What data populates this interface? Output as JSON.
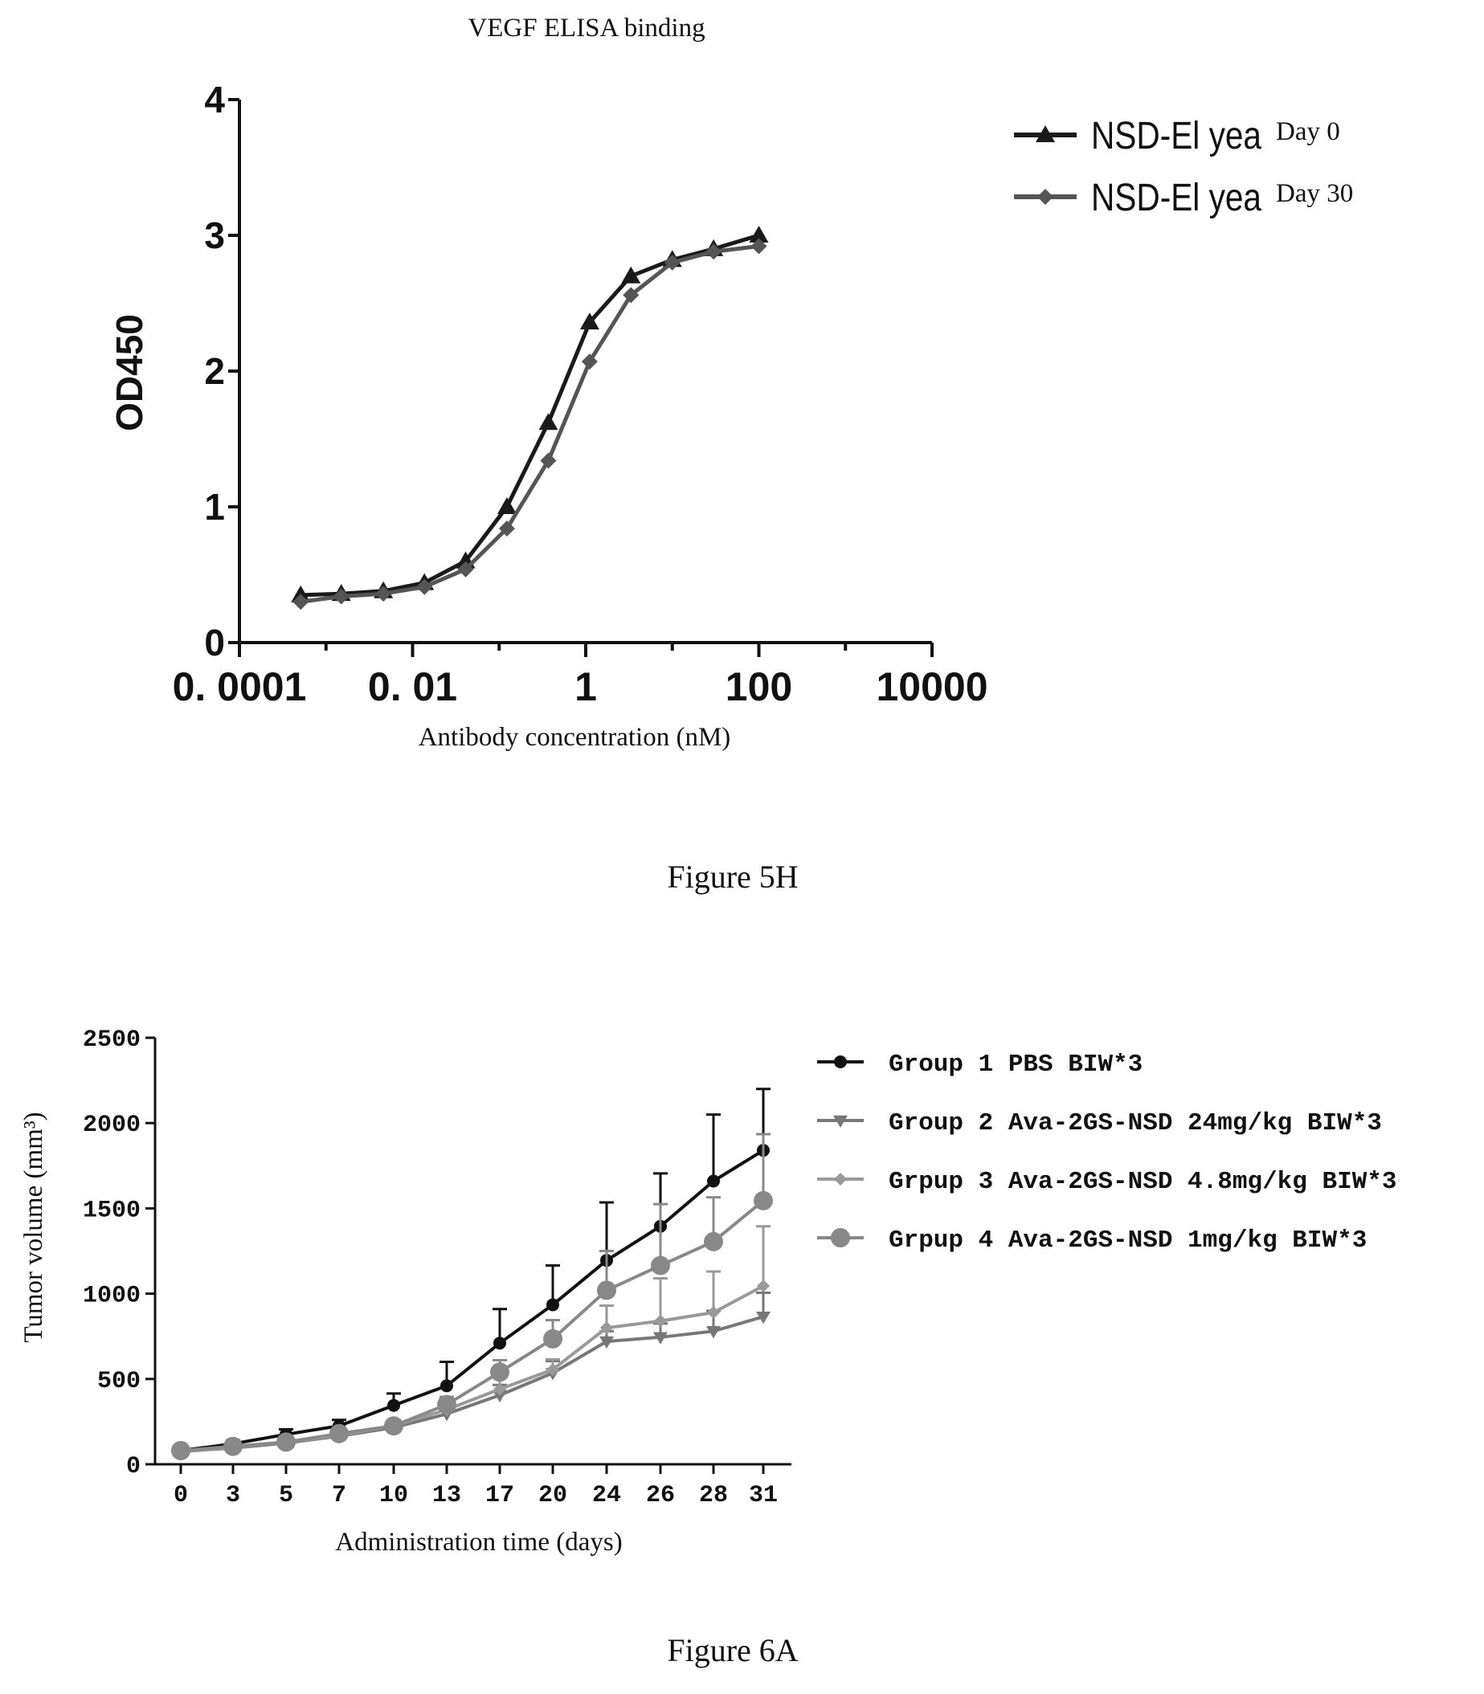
{
  "chart_data": [
    {
      "type": "line",
      "title": "VEGF ELISA binding",
      "xlabel": "Antibody concentration (nM)",
      "ylabel": "OD450",
      "xscale": "log",
      "xlim": [
        0.0001,
        10000
      ],
      "ylim": [
        0,
        4
      ],
      "xticks": [
        "0. 0001",
        "0. 01",
        "1",
        "100",
        "10000"
      ],
      "yticks": [
        "0",
        "1",
        "2",
        "3",
        "4"
      ],
      "x": [
        0.00051,
        0.0015,
        0.0046,
        0.0137,
        0.041,
        0.123,
        0.37,
        1.11,
        3.33,
        10,
        30,
        100
      ],
      "series": [
        {
          "name": "NSD-El yea",
          "suffix": "Day 0",
          "marker": "triangle",
          "color": "#1a1a1a",
          "values": [
            0.35,
            0.36,
            0.38,
            0.44,
            0.6,
            1.0,
            1.62,
            2.36,
            2.7,
            2.82,
            2.9,
            3.0
          ]
        },
        {
          "name": "NSD-El yea",
          "suffix": "Day 30",
          "marker": "diamond",
          "color": "#555555",
          "values": [
            0.3,
            0.34,
            0.36,
            0.41,
            0.54,
            0.84,
            1.34,
            2.07,
            2.56,
            2.8,
            2.88,
            2.92
          ]
        }
      ],
      "legend_position": "top-right",
      "grid": false,
      "caption": "Figure 5H"
    },
    {
      "type": "line",
      "title": "",
      "xlabel": "Administration time (days)",
      "ylabel": "Tumor volume (mm³)",
      "ylim": [
        0,
        2500
      ],
      "yticks": [
        "0",
        "500",
        "1000",
        "1500",
        "2000",
        "2500"
      ],
      "categories": [
        "0",
        "3",
        "5",
        "7",
        "10",
        "13",
        "17",
        "20",
        "24",
        "26",
        "28",
        "31"
      ],
      "series": [
        {
          "name": "Group 1 PBS BIW*3",
          "marker": "circle-small",
          "color": "#111111",
          "values": [
            80,
            120,
            175,
            225,
            345,
            460,
            710,
            935,
            1195,
            1395,
            1660,
            1840
          ],
          "error": [
            0,
            20,
            30,
            35,
            70,
            140,
            200,
            230,
            340,
            310,
            390,
            360
          ]
        },
        {
          "name": "Group 2 Ava-2GS-NSD 24mg/kg BIW*3",
          "marker": "triangle-down",
          "color": "#777777",
          "values": [
            75,
            95,
            125,
            165,
            215,
            295,
            405,
            535,
            720,
            745,
            780,
            865
          ],
          "error": [
            0,
            15,
            20,
            25,
            30,
            40,
            60,
            70,
            60,
            80,
            120,
            140
          ]
        },
        {
          "name": "Grpup 3 Ava-2GS-NSD 4.8mg/kg BIW*3",
          "marker": "diamond-small",
          "color": "#999999",
          "values": [
            75,
            100,
            130,
            170,
            225,
            320,
            440,
            555,
            800,
            840,
            890,
            1045
          ],
          "error": [
            0,
            15,
            20,
            25,
            35,
            50,
            70,
            60,
            130,
            250,
            240,
            350
          ]
        },
        {
          "name": "Grpup 4 Ava-2GS-NSD 1mg/kg BIW*3",
          "marker": "circle-large",
          "color": "#888888",
          "values": [
            80,
            105,
            130,
            180,
            225,
            350,
            540,
            735,
            1020,
            1165,
            1305,
            1545
          ],
          "error": [
            0,
            15,
            20,
            25,
            30,
            45,
            70,
            110,
            230,
            360,
            260,
            390
          ]
        }
      ],
      "legend_position": "right",
      "grid": false,
      "caption": "Figure 6A"
    }
  ]
}
